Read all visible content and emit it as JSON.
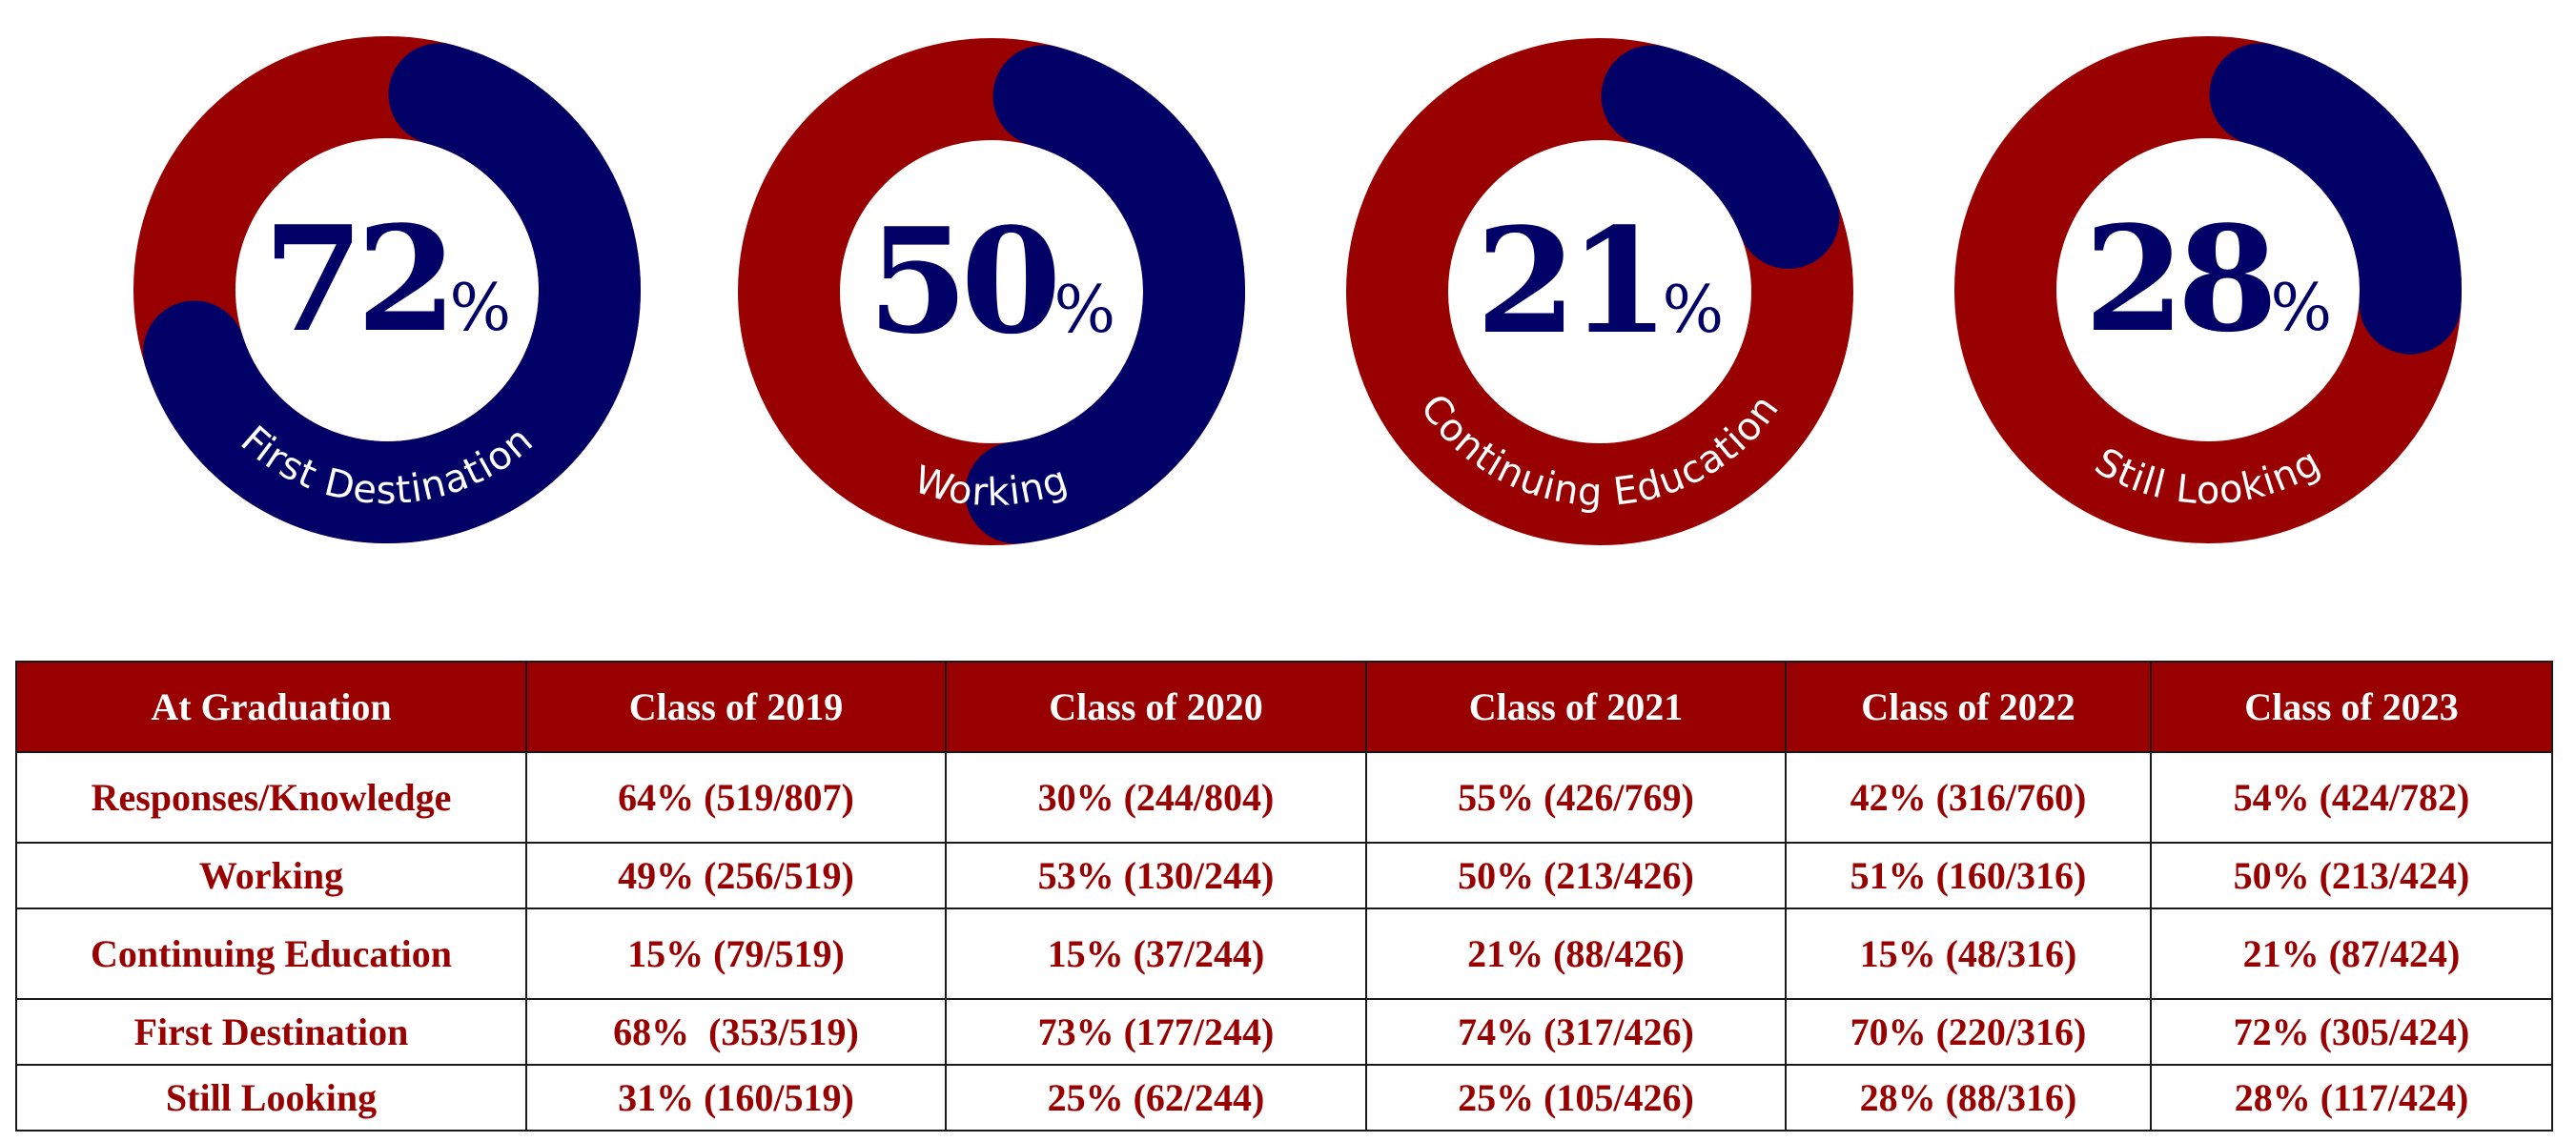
{
  "colors": {
    "primary_red": "#990000",
    "navy": "#000066",
    "header_text": "#ffffff",
    "border": "#1a1a1a"
  },
  "chart_data": {
    "type": "pie",
    "subtype": "donut-gauges",
    "gauges": [
      {
        "label": "First Destination",
        "value": 72,
        "number": "72",
        "suffix": "%",
        "filled_color": "#000066",
        "track_color": "#990000",
        "label_on": "filled"
      },
      {
        "label": "Working",
        "value": 50,
        "number": "50",
        "suffix": "%",
        "filled_color": "#000066",
        "track_color": "#990000",
        "label_on": "track"
      },
      {
        "label": "Continuing Education",
        "value": 21,
        "number": "21",
        "suffix": "%",
        "filled_color": "#000066",
        "track_color": "#990000",
        "label_on": "track"
      },
      {
        "label": "Still Looking",
        "value": 28,
        "number": "28",
        "suffix": "%",
        "filled_color": "#000066",
        "track_color": "#990000",
        "label_on": "track"
      }
    ]
  },
  "table": {
    "headers": [
      "At Graduation",
      "Class of 2019",
      "Class of 2020",
      "Class of 2021",
      "Class of 2022",
      "Class of 2023"
    ],
    "rows": [
      {
        "label": "Responses/Knowledge",
        "cells": [
          "64% (519/807)",
          "30% (244/804)",
          "55% (426/769)",
          "42% (316/760)",
          "54% (424/782)"
        ]
      },
      {
        "label": "Working",
        "cells": [
          "49% (256/519)",
          "53% (130/244)",
          "50% (213/426)",
          "51% (160/316)",
          "50% (213/424)"
        ]
      },
      {
        "label": "Continuing Education",
        "cells": [
          "15% (79/519)",
          "15% (37/244)",
          "21% (88/426)",
          "15% (48/316)",
          "21% (87/424)"
        ]
      },
      {
        "label": "First Destination",
        "cells": [
          "68%  (353/519)",
          "73% (177/244)",
          "74% (317/426)",
          "70% (220/316)",
          "72% (305/424)"
        ]
      },
      {
        "label": "Still Looking",
        "cells": [
          "31% (160/519)",
          "25% (62/244)",
          "25% (105/426)",
          "28% (88/316)",
          "28% (117/424)"
        ]
      }
    ]
  }
}
